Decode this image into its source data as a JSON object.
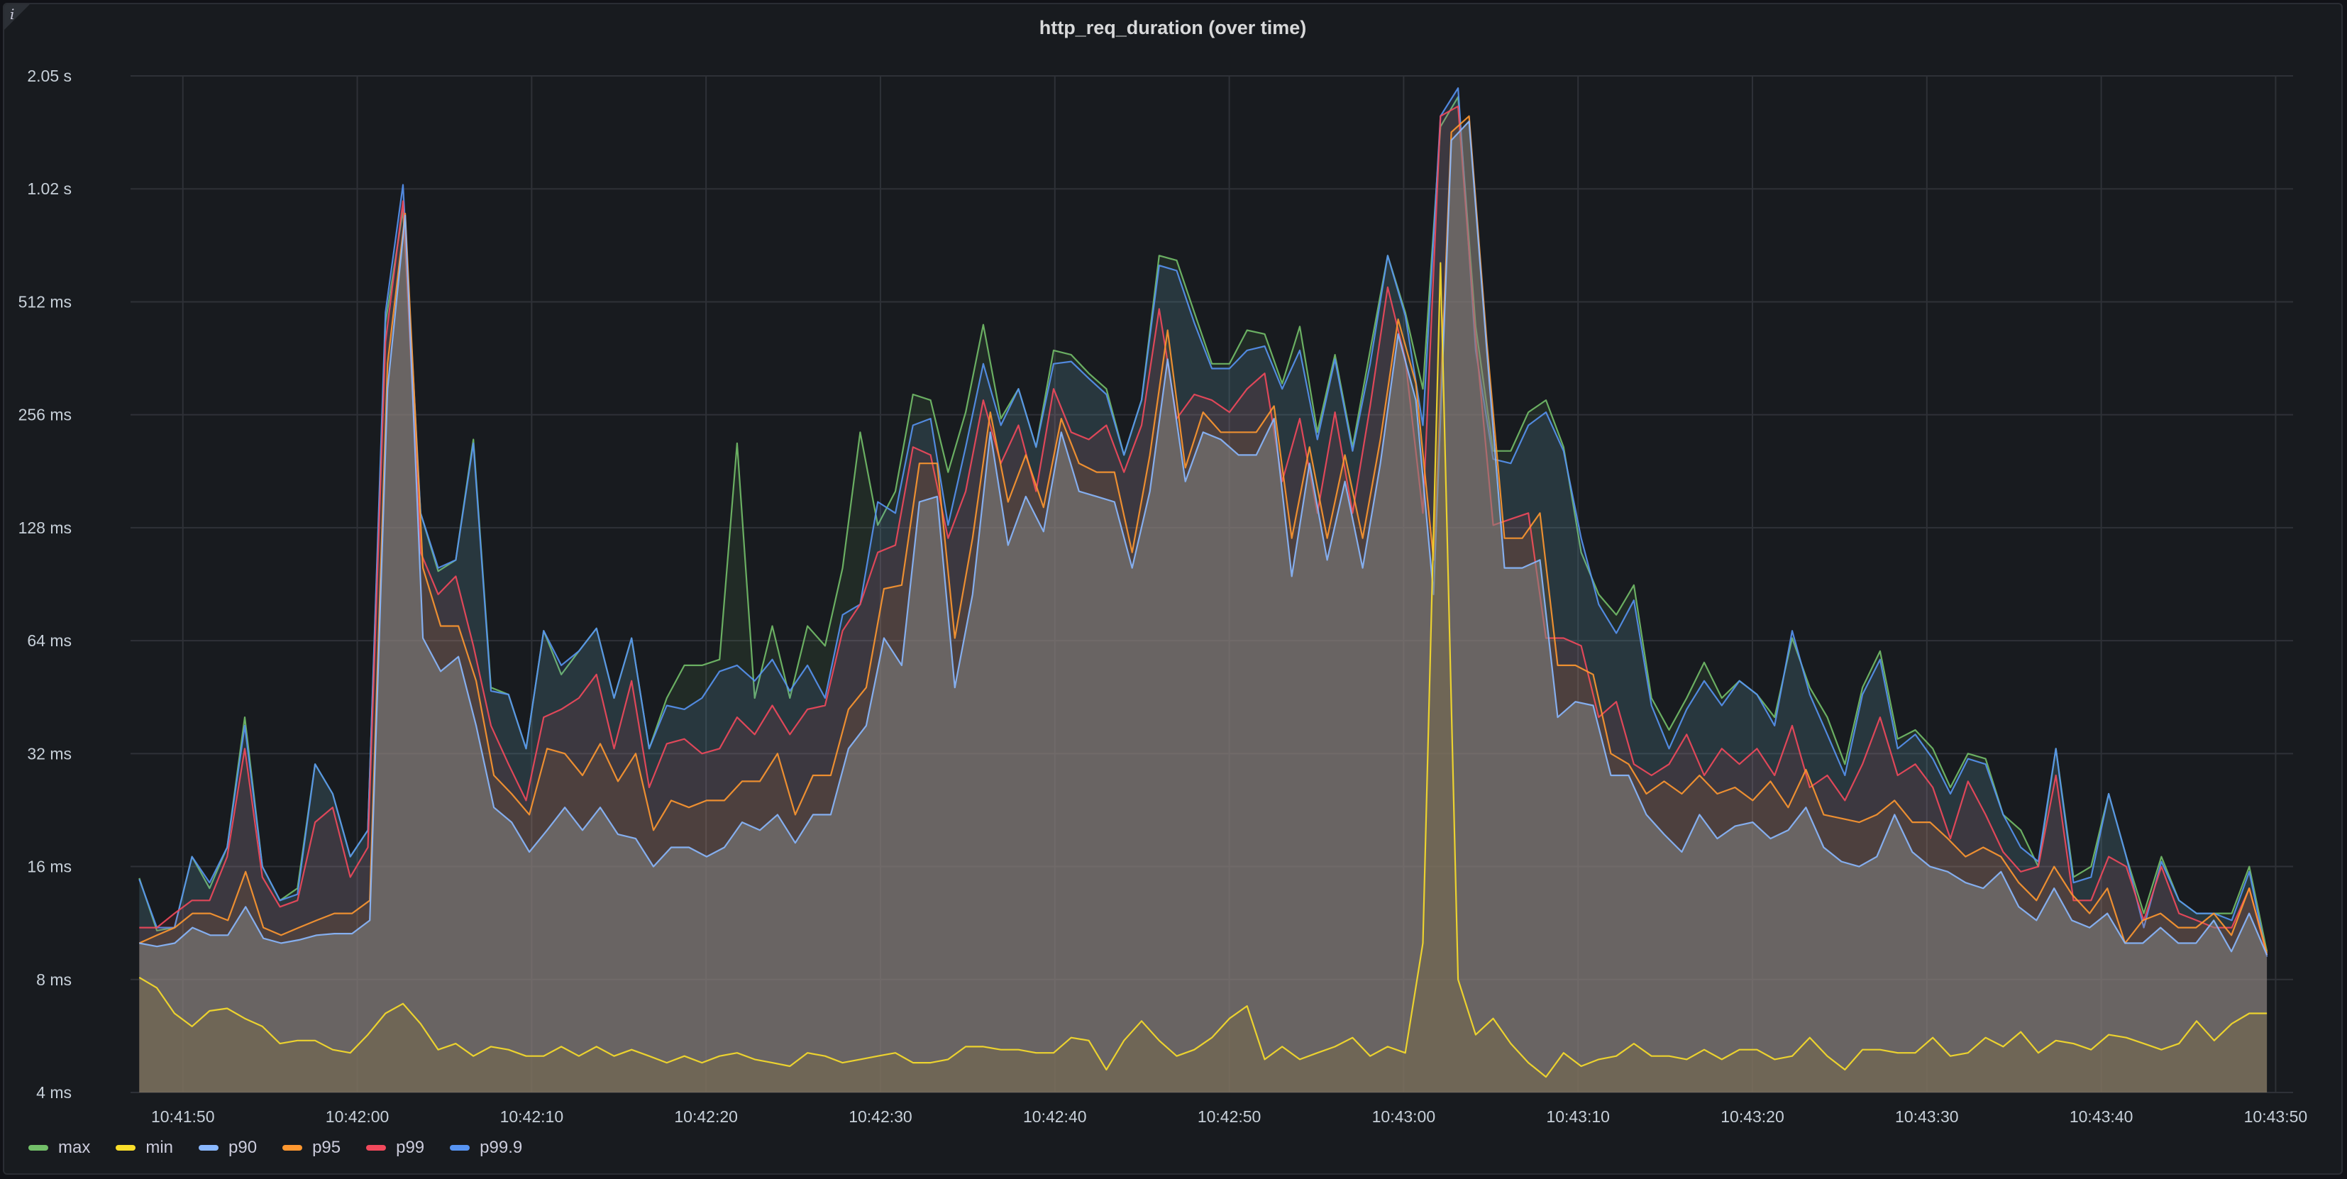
{
  "chart_data": {
    "type": "area",
    "title": "http_req_duration (over time)",
    "yscale": "log2",
    "y_ticks": [
      {
        "value": 4,
        "label": "4 ms"
      },
      {
        "value": 8,
        "label": "8 ms"
      },
      {
        "value": 16,
        "label": "16 ms"
      },
      {
        "value": 32,
        "label": "32 ms"
      },
      {
        "value": 64,
        "label": "64 ms"
      },
      {
        "value": 128,
        "label": "128 ms"
      },
      {
        "value": 256,
        "label": "256 ms"
      },
      {
        "value": 512,
        "label": "512 ms"
      },
      {
        "value": 1024,
        "label": "1.02 s"
      },
      {
        "value": 2048,
        "label": "2.05 s"
      }
    ],
    "ylim": [
      4,
      2048
    ],
    "x_ticks": [
      "10:41:50",
      "10:42:00",
      "10:42:10",
      "10:42:20",
      "10:42:30",
      "10:42:40",
      "10:42:50",
      "10:43:00",
      "10:43:10",
      "10:43:20",
      "10:43:30",
      "10:43:40",
      "10:43:50"
    ],
    "xlim": [
      "10:41:47",
      "10:43:51"
    ],
    "x_start": "10:41:47.5",
    "x_end": "10:43:49.5",
    "grid": true,
    "legend_position": "bottom-left",
    "series": [
      {
        "name": "max",
        "color": "#73bf69",
        "values": [
          14.9,
          10.8,
          11,
          17,
          14,
          18,
          40,
          16,
          13,
          14,
          30,
          25,
          17,
          20,
          450,
          900,
          140,
          98,
          105,
          220,
          48,
          46,
          33,
          68,
          52,
          60,
          69,
          45,
          65,
          33,
          45,
          55,
          55,
          57,
          215,
          45,
          70,
          45,
          70,
          62,
          100,
          230,
          130,
          160,
          290,
          280,
          180,
          260,
          445,
          250,
          300,
          210,
          380,
          370,
          330,
          300,
          200,
          280,
          680,
          660,
          480,
          350,
          350,
          430,
          420,
          310,
          440,
          230,
          370,
          210,
          380,
          680,
          480,
          300,
          1500,
          1800,
          440,
          205,
          205,
          260,
          280,
          210,
          110,
          85,
          75,
          90,
          45,
          37,
          45,
          56,
          45,
          50,
          46,
          40,
          65,
          48,
          40,
          30,
          48,
          60,
          35,
          37,
          33,
          26,
          32,
          31,
          22,
          20,
          16,
          33,
          15,
          16,
          25,
          17,
          12,
          17,
          13,
          12,
          12,
          12,
          16,
          9.5
        ]
      },
      {
        "name": "min",
        "color": "#fade2a",
        "values": [
          8.1,
          7.6,
          6.5,
          6,
          6.6,
          6.7,
          6.3,
          6,
          5.4,
          5.5,
          5.5,
          5.2,
          5.1,
          5.7,
          6.5,
          6.9,
          6.1,
          5.2,
          5.4,
          5,
          5.3,
          5.2,
          5,
          5,
          5.3,
          5,
          5.3,
          5,
          5.2,
          5,
          4.8,
          5,
          4.8,
          5,
          5.1,
          4.9,
          4.8,
          4.7,
          5.1,
          5,
          4.8,
          4.9,
          5,
          5.1,
          4.8,
          4.8,
          4.9,
          5.3,
          5.3,
          5.2,
          5.2,
          5.1,
          5.1,
          5.6,
          5.5,
          4.6,
          5.5,
          6.2,
          5.5,
          5,
          5.2,
          5.6,
          6.3,
          6.8,
          4.9,
          5.3,
          4.9,
          5.1,
          5.3,
          5.6,
          5,
          5.3,
          5.1,
          10,
          650,
          8,
          5.7,
          6.3,
          5.4,
          4.8,
          4.4,
          5.1,
          4.7,
          4.9,
          5,
          5.4,
          5,
          5,
          4.9,
          5.2,
          4.9,
          5.2,
          5.2,
          4.9,
          5,
          5.6,
          5,
          4.6,
          5.2,
          5.2,
          5.1,
          5.1,
          5.6,
          5,
          5.1,
          5.6,
          5.3,
          5.8,
          5.1,
          5.5,
          5.4,
          5.2,
          5.7,
          5.6,
          5.4,
          5.2,
          5.4,
          6.2,
          5.5,
          6.1,
          6.5,
          6.5
        ]
      },
      {
        "name": "p90",
        "color": "#8ab8ff",
        "values": [
          10,
          9.8,
          10,
          11,
          10.5,
          10.5,
          12.5,
          10.3,
          10,
          10.2,
          10.5,
          10.6,
          10.6,
          11.5,
          300,
          870,
          65,
          53,
          58,
          38,
          23,
          21,
          17.5,
          20,
          23,
          20,
          23,
          19.5,
          19,
          16,
          18,
          18,
          17,
          18,
          21,
          20,
          22,
          18.5,
          22,
          22,
          33,
          38,
          65,
          55,
          150,
          155,
          48,
          85,
          230,
          115,
          155,
          125,
          230,
          160,
          155,
          150,
          100,
          160,
          360,
          170,
          230,
          220,
          200,
          200,
          250,
          95,
          190,
          105,
          170,
          100,
          190,
          420,
          280,
          85,
          1380,
          1550,
          380,
          100,
          100,
          105,
          40,
          44,
          43,
          28,
          28,
          22,
          19.5,
          17.5,
          22,
          19,
          20.5,
          21,
          19,
          20,
          23,
          18,
          16.5,
          16,
          17,
          22,
          17.5,
          16,
          15.5,
          14.5,
          14,
          15.5,
          12.5,
          11.5,
          14,
          11.5,
          11,
          12,
          10,
          10,
          11,
          10,
          10,
          11.5,
          9.5,
          12,
          9.3
        ]
      },
      {
        "name": "p95",
        "color": "#ff9830",
        "values": [
          10,
          10.5,
          11,
          12,
          12,
          11.5,
          15.5,
          11,
          10.5,
          11,
          11.5,
          12,
          12,
          13,
          350,
          880,
          100,
          70,
          70,
          50,
          28,
          25,
          22,
          33,
          32,
          28,
          34,
          27,
          32,
          20,
          24,
          23,
          24,
          24,
          27,
          27,
          32,
          22,
          28,
          28,
          42,
          48,
          88,
          90,
          190,
          190,
          65,
          120,
          260,
          150,
          200,
          145,
          250,
          190,
          180,
          180,
          110,
          200,
          430,
          185,
          260,
          230,
          230,
          230,
          270,
          120,
          210,
          120,
          200,
          120,
          220,
          460,
          310,
          105,
          1450,
          1600,
          400,
          120,
          120,
          140,
          55,
          55,
          52,
          32,
          30,
          25,
          27,
          25,
          28,
          25,
          26,
          24,
          27,
          23,
          29,
          22,
          21.5,
          21,
          22,
          24,
          21,
          21,
          19,
          17,
          18,
          17,
          14.5,
          13,
          16,
          13.5,
          12,
          14,
          10,
          11.5,
          12,
          11,
          11,
          12,
          10.5,
          14,
          9.4
        ]
      },
      {
        "name": "p99",
        "color": "#f2495c",
        "values": [
          11,
          11,
          12,
          13,
          13,
          17,
          33,
          15,
          12.5,
          13,
          21,
          23,
          15,
          18,
          400,
          950,
          110,
          85,
          95,
          62,
          38,
          30,
          24,
          40,
          42,
          45,
          52,
          33,
          50,
          26,
          34,
          35,
          32,
          33,
          40,
          36,
          43,
          36,
          42,
          43,
          68,
          80,
          110,
          115,
          210,
          200,
          120,
          160,
          280,
          190,
          240,
          160,
          300,
          230,
          220,
          240,
          180,
          240,
          490,
          250,
          290,
          280,
          260,
          300,
          330,
          170,
          250,
          140,
          260,
          140,
          270,
          560,
          360,
          140,
          1600,
          1700,
          410,
          130,
          135,
          140,
          65,
          65,
          62,
          40,
          44,
          30,
          28,
          30,
          36,
          28,
          33,
          30,
          33,
          28,
          38,
          26,
          28,
          24,
          30,
          40,
          28,
          30,
          26,
          19,
          27,
          22,
          17.5,
          15.5,
          16,
          28,
          13,
          13,
          17,
          16,
          11.5,
          16,
          12,
          11.5,
          11,
          11,
          14,
          9.3
        ]
      },
      {
        "name": "p99.9",
        "color": "#5794f2",
        "values": [
          14.8,
          11,
          11,
          17,
          14.5,
          18,
          38,
          16,
          13,
          13.5,
          30,
          25,
          17,
          20,
          480,
          1050,
          140,
          100,
          105,
          215,
          47,
          46,
          33,
          68,
          55,
          60,
          69,
          45,
          65,
          33,
          43,
          42,
          45,
          53,
          55,
          50,
          57,
          47,
          55,
          45,
          75,
          80,
          150,
          140,
          240,
          250,
          130,
          210,
          350,
          240,
          300,
          210,
          350,
          355,
          320,
          290,
          200,
          280,
          640,
          620,
          450,
          340,
          340,
          380,
          390,
          300,
          380,
          220,
          360,
          205,
          350,
          680,
          470,
          240,
          1600,
          1900,
          380,
          195,
          190,
          240,
          260,
          205,
          120,
          80,
          67,
          82,
          43,
          33,
          42,
          50,
          43,
          50,
          46,
          38,
          68,
          46,
          36,
          28,
          46,
          57,
          33,
          36,
          31,
          25,
          31,
          30,
          22,
          18,
          16.5,
          33,
          14.5,
          15,
          25,
          17,
          11,
          16.5,
          13,
          12,
          12,
          11.5,
          15.5,
          9.2
        ]
      }
    ]
  }
}
